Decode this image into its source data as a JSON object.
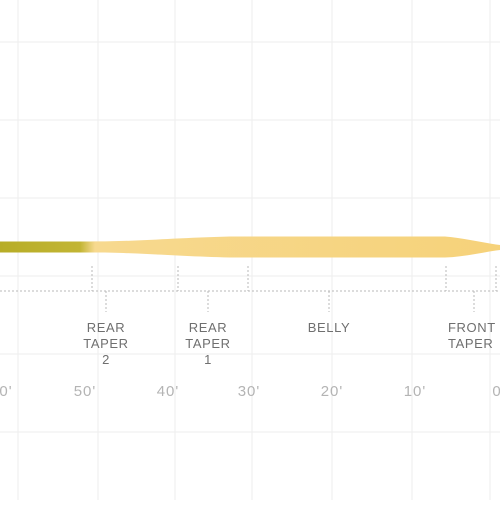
{
  "colors": {
    "line_yellow": "#f7d98f",
    "line_green": "#b7ad27",
    "grid": "#eeeeee",
    "dotted": "#b8b8b8",
    "label_text": "#6f6f6f",
    "scale_text": "#b4b4b4"
  },
  "sections": [
    {
      "name": "rear-taper-2",
      "lines": [
        "REAR",
        "TAPER",
        "2"
      ]
    },
    {
      "name": "rear-taper-1",
      "lines": [
        "REAR",
        "TAPER",
        "1"
      ]
    },
    {
      "name": "belly",
      "lines": [
        "BELLY"
      ]
    },
    {
      "name": "front-taper",
      "lines": [
        "FRONT",
        "TAPER"
      ]
    }
  ],
  "scale": [
    "0'",
    "50'",
    "40'",
    "30'",
    "20'",
    "10'",
    "0"
  ]
}
